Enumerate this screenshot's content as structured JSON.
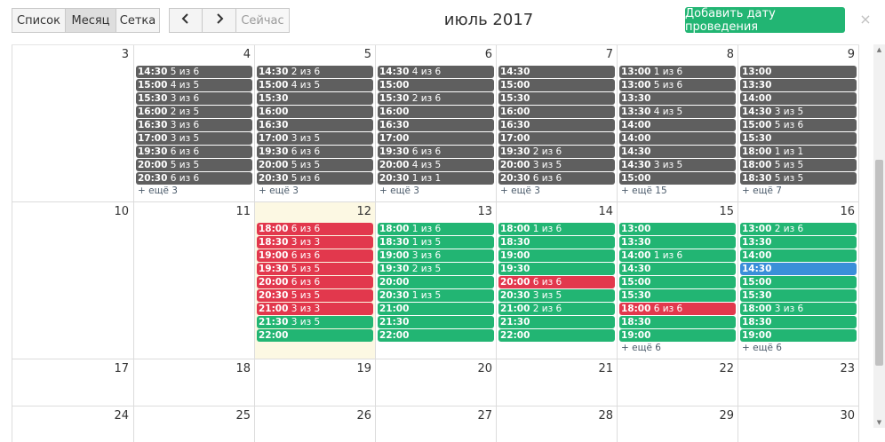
{
  "toolbar": {
    "list_label": "Список",
    "month_label": "Месяц",
    "grid_label": "Сетка",
    "prev_label": "<",
    "next_label": ">",
    "now_label": "Сейчас",
    "title": "июль 2017",
    "add_label": "Добавить дату проведения",
    "close_label": "×"
  },
  "weeks": [
    {
      "days": [
        {
          "num": "3",
          "events": [],
          "more": ""
        },
        {
          "num": "4",
          "events": [
            {
              "time": "14:30",
              "count": "5 из 6",
              "color": "gray"
            },
            {
              "time": "15:00",
              "count": "4 из 5",
              "color": "gray"
            },
            {
              "time": "15:30",
              "count": "3 из 6",
              "color": "gray"
            },
            {
              "time": "16:00",
              "count": "2 из 5",
              "color": "gray"
            },
            {
              "time": "16:30",
              "count": "3 из 6",
              "color": "gray"
            },
            {
              "time": "17:00",
              "count": "3 из 5",
              "color": "gray"
            },
            {
              "time": "19:30",
              "count": "6 из 6",
              "color": "gray"
            },
            {
              "time": "20:00",
              "count": "5 из 5",
              "color": "gray"
            },
            {
              "time": "20:30",
              "count": "6 из 6",
              "color": "gray"
            }
          ],
          "more": "+ ещё 3"
        },
        {
          "num": "5",
          "events": [
            {
              "time": "14:30",
              "count": "2 из 6",
              "color": "gray"
            },
            {
              "time": "15:00",
              "count": "4 из 5",
              "color": "gray"
            },
            {
              "time": "15:30",
              "count": "",
              "color": "gray"
            },
            {
              "time": "16:00",
              "count": "",
              "color": "gray"
            },
            {
              "time": "16:30",
              "count": "",
              "color": "gray"
            },
            {
              "time": "17:00",
              "count": "3 из 5",
              "color": "gray"
            },
            {
              "time": "19:30",
              "count": "6 из 6",
              "color": "gray"
            },
            {
              "time": "20:00",
              "count": "5 из 5",
              "color": "gray"
            },
            {
              "time": "20:30",
              "count": "5 из 6",
              "color": "gray"
            }
          ],
          "more": "+ ещё 3"
        },
        {
          "num": "6",
          "events": [
            {
              "time": "14:30",
              "count": "4 из 6",
              "color": "gray"
            },
            {
              "time": "15:00",
              "count": "",
              "color": "gray"
            },
            {
              "time": "15:30",
              "count": "2 из 6",
              "color": "gray"
            },
            {
              "time": "16:00",
              "count": "",
              "color": "gray"
            },
            {
              "time": "16:30",
              "count": "",
              "color": "gray"
            },
            {
              "time": "17:00",
              "count": "",
              "color": "gray"
            },
            {
              "time": "19:30",
              "count": "6 из 6",
              "color": "gray"
            },
            {
              "time": "20:00",
              "count": "4 из 5",
              "color": "gray"
            },
            {
              "time": "20:30",
              "count": "1 из 1",
              "color": "gray"
            }
          ],
          "more": "+ ещё 3"
        },
        {
          "num": "7",
          "events": [
            {
              "time": "14:30",
              "count": "",
              "color": "gray"
            },
            {
              "time": "15:00",
              "count": "",
              "color": "gray"
            },
            {
              "time": "15:30",
              "count": "",
              "color": "gray"
            },
            {
              "time": "16:00",
              "count": "",
              "color": "gray"
            },
            {
              "time": "16:30",
              "count": "",
              "color": "gray"
            },
            {
              "time": "17:00",
              "count": "",
              "color": "gray"
            },
            {
              "time": "19:30",
              "count": "2 из 6",
              "color": "gray"
            },
            {
              "time": "20:00",
              "count": "3 из 5",
              "color": "gray"
            },
            {
              "time": "20:30",
              "count": "6 из 6",
              "color": "gray"
            }
          ],
          "more": "+ ещё 3"
        },
        {
          "num": "8",
          "events": [
            {
              "time": "13:00",
              "count": "1 из 6",
              "color": "gray"
            },
            {
              "time": "13:00",
              "count": "5 из 6",
              "color": "gray"
            },
            {
              "time": "13:30",
              "count": "",
              "color": "gray"
            },
            {
              "time": "13:30",
              "count": "4 из 5",
              "color": "gray"
            },
            {
              "time": "14:00",
              "count": "",
              "color": "gray"
            },
            {
              "time": "14:00",
              "count": "",
              "color": "gray"
            },
            {
              "time": "14:30",
              "count": "",
              "color": "gray"
            },
            {
              "time": "14:30",
              "count": "3 из 5",
              "color": "gray"
            },
            {
              "time": "15:00",
              "count": "",
              "color": "gray"
            }
          ],
          "more": "+ ещё 15"
        },
        {
          "num": "9",
          "events": [
            {
              "time": "13:00",
              "count": "",
              "color": "gray"
            },
            {
              "time": "13:30",
              "count": "",
              "color": "gray"
            },
            {
              "time": "14:00",
              "count": "",
              "color": "gray"
            },
            {
              "time": "14:30",
              "count": "3 из 5",
              "color": "gray"
            },
            {
              "time": "15:00",
              "count": "5 из 6",
              "color": "gray"
            },
            {
              "time": "15:30",
              "count": "",
              "color": "gray"
            },
            {
              "time": "18:00",
              "count": "1 из 1",
              "color": "gray"
            },
            {
              "time": "18:00",
              "count": "5 из 5",
              "color": "gray"
            },
            {
              "time": "18:30",
              "count": "5 из 5",
              "color": "gray"
            }
          ],
          "more": "+ ещё 7"
        }
      ]
    },
    {
      "days": [
        {
          "num": "10",
          "events": [],
          "more": ""
        },
        {
          "num": "11",
          "events": [],
          "more": ""
        },
        {
          "num": "12",
          "today": true,
          "events": [
            {
              "time": "18:00",
              "count": "6 из 6",
              "color": "red"
            },
            {
              "time": "18:30",
              "count": "3 из 3",
              "color": "red"
            },
            {
              "time": "19:00",
              "count": "6 из 6",
              "color": "red"
            },
            {
              "time": "19:30",
              "count": "5 из 5",
              "color": "red"
            },
            {
              "time": "20:00",
              "count": "6 из 6",
              "color": "red"
            },
            {
              "time": "20:30",
              "count": "5 из 5",
              "color": "red"
            },
            {
              "time": "21:00",
              "count": "3 из 3",
              "color": "red"
            },
            {
              "time": "21:30",
              "count": "3 из 5",
              "color": "green"
            },
            {
              "time": "22:00",
              "count": "",
              "color": "green"
            }
          ],
          "more": ""
        },
        {
          "num": "13",
          "events": [
            {
              "time": "18:00",
              "count": "1 из 6",
              "color": "green"
            },
            {
              "time": "18:30",
              "count": "1 из 5",
              "color": "green"
            },
            {
              "time": "19:00",
              "count": "3 из 6",
              "color": "green"
            },
            {
              "time": "19:30",
              "count": "2 из 5",
              "color": "green"
            },
            {
              "time": "20:00",
              "count": "",
              "color": "green"
            },
            {
              "time": "20:30",
              "count": "1 из 5",
              "color": "green"
            },
            {
              "time": "21:00",
              "count": "",
              "color": "green"
            },
            {
              "time": "21:30",
              "count": "",
              "color": "green"
            },
            {
              "time": "22:00",
              "count": "",
              "color": "green"
            }
          ],
          "more": ""
        },
        {
          "num": "14",
          "events": [
            {
              "time": "18:00",
              "count": "1 из 6",
              "color": "green"
            },
            {
              "time": "18:30",
              "count": "",
              "color": "green"
            },
            {
              "time": "19:00",
              "count": "",
              "color": "green"
            },
            {
              "time": "19:30",
              "count": "",
              "color": "green"
            },
            {
              "time": "20:00",
              "count": "6 из 6",
              "color": "red"
            },
            {
              "time": "20:30",
              "count": "3 из 5",
              "color": "green"
            },
            {
              "time": "21:00",
              "count": "2 из 6",
              "color": "green"
            },
            {
              "time": "21:30",
              "count": "",
              "color": "green"
            },
            {
              "time": "22:00",
              "count": "",
              "color": "green"
            }
          ],
          "more": ""
        },
        {
          "num": "15",
          "events": [
            {
              "time": "13:00",
              "count": "",
              "color": "green"
            },
            {
              "time": "13:30",
              "count": "",
              "color": "green"
            },
            {
              "time": "14:00",
              "count": "1 из 6",
              "color": "green"
            },
            {
              "time": "14:30",
              "count": "",
              "color": "green"
            },
            {
              "time": "15:00",
              "count": "",
              "color": "green"
            },
            {
              "time": "15:30",
              "count": "",
              "color": "green"
            },
            {
              "time": "18:00",
              "count": "6 из 6",
              "color": "red"
            },
            {
              "time": "18:30",
              "count": "",
              "color": "green"
            },
            {
              "time": "19:00",
              "count": "",
              "color": "green"
            }
          ],
          "more": "+ ещё 6"
        },
        {
          "num": "16",
          "events": [
            {
              "time": "13:00",
              "count": "2 из 6",
              "color": "green"
            },
            {
              "time": "13:30",
              "count": "",
              "color": "green"
            },
            {
              "time": "14:00",
              "count": "",
              "color": "green"
            },
            {
              "time": "14:30",
              "count": "",
              "color": "blue"
            },
            {
              "time": "15:00",
              "count": "",
              "color": "green"
            },
            {
              "time": "15:30",
              "count": "",
              "color": "green"
            },
            {
              "time": "18:00",
              "count": "3 из 6",
              "color": "green"
            },
            {
              "time": "18:30",
              "count": "",
              "color": "green"
            },
            {
              "time": "19:00",
              "count": "",
              "color": "green"
            }
          ],
          "more": "+ ещё 6"
        }
      ]
    },
    {
      "days": [
        {
          "num": "17",
          "events": [],
          "more": ""
        },
        {
          "num": "18",
          "events": [],
          "more": ""
        },
        {
          "num": "19",
          "events": [],
          "more": ""
        },
        {
          "num": "20",
          "events": [],
          "more": ""
        },
        {
          "num": "21",
          "events": [],
          "more": ""
        },
        {
          "num": "22",
          "events": [],
          "more": ""
        },
        {
          "num": "23",
          "events": [],
          "more": ""
        }
      ]
    },
    {
      "days": [
        {
          "num": "24",
          "events": [],
          "more": ""
        },
        {
          "num": "25",
          "events": [],
          "more": ""
        },
        {
          "num": "26",
          "events": [],
          "more": ""
        },
        {
          "num": "27",
          "events": [],
          "more": ""
        },
        {
          "num": "28",
          "events": [],
          "more": ""
        },
        {
          "num": "29",
          "events": [],
          "more": ""
        },
        {
          "num": "30",
          "events": [],
          "more": ""
        }
      ]
    }
  ]
}
